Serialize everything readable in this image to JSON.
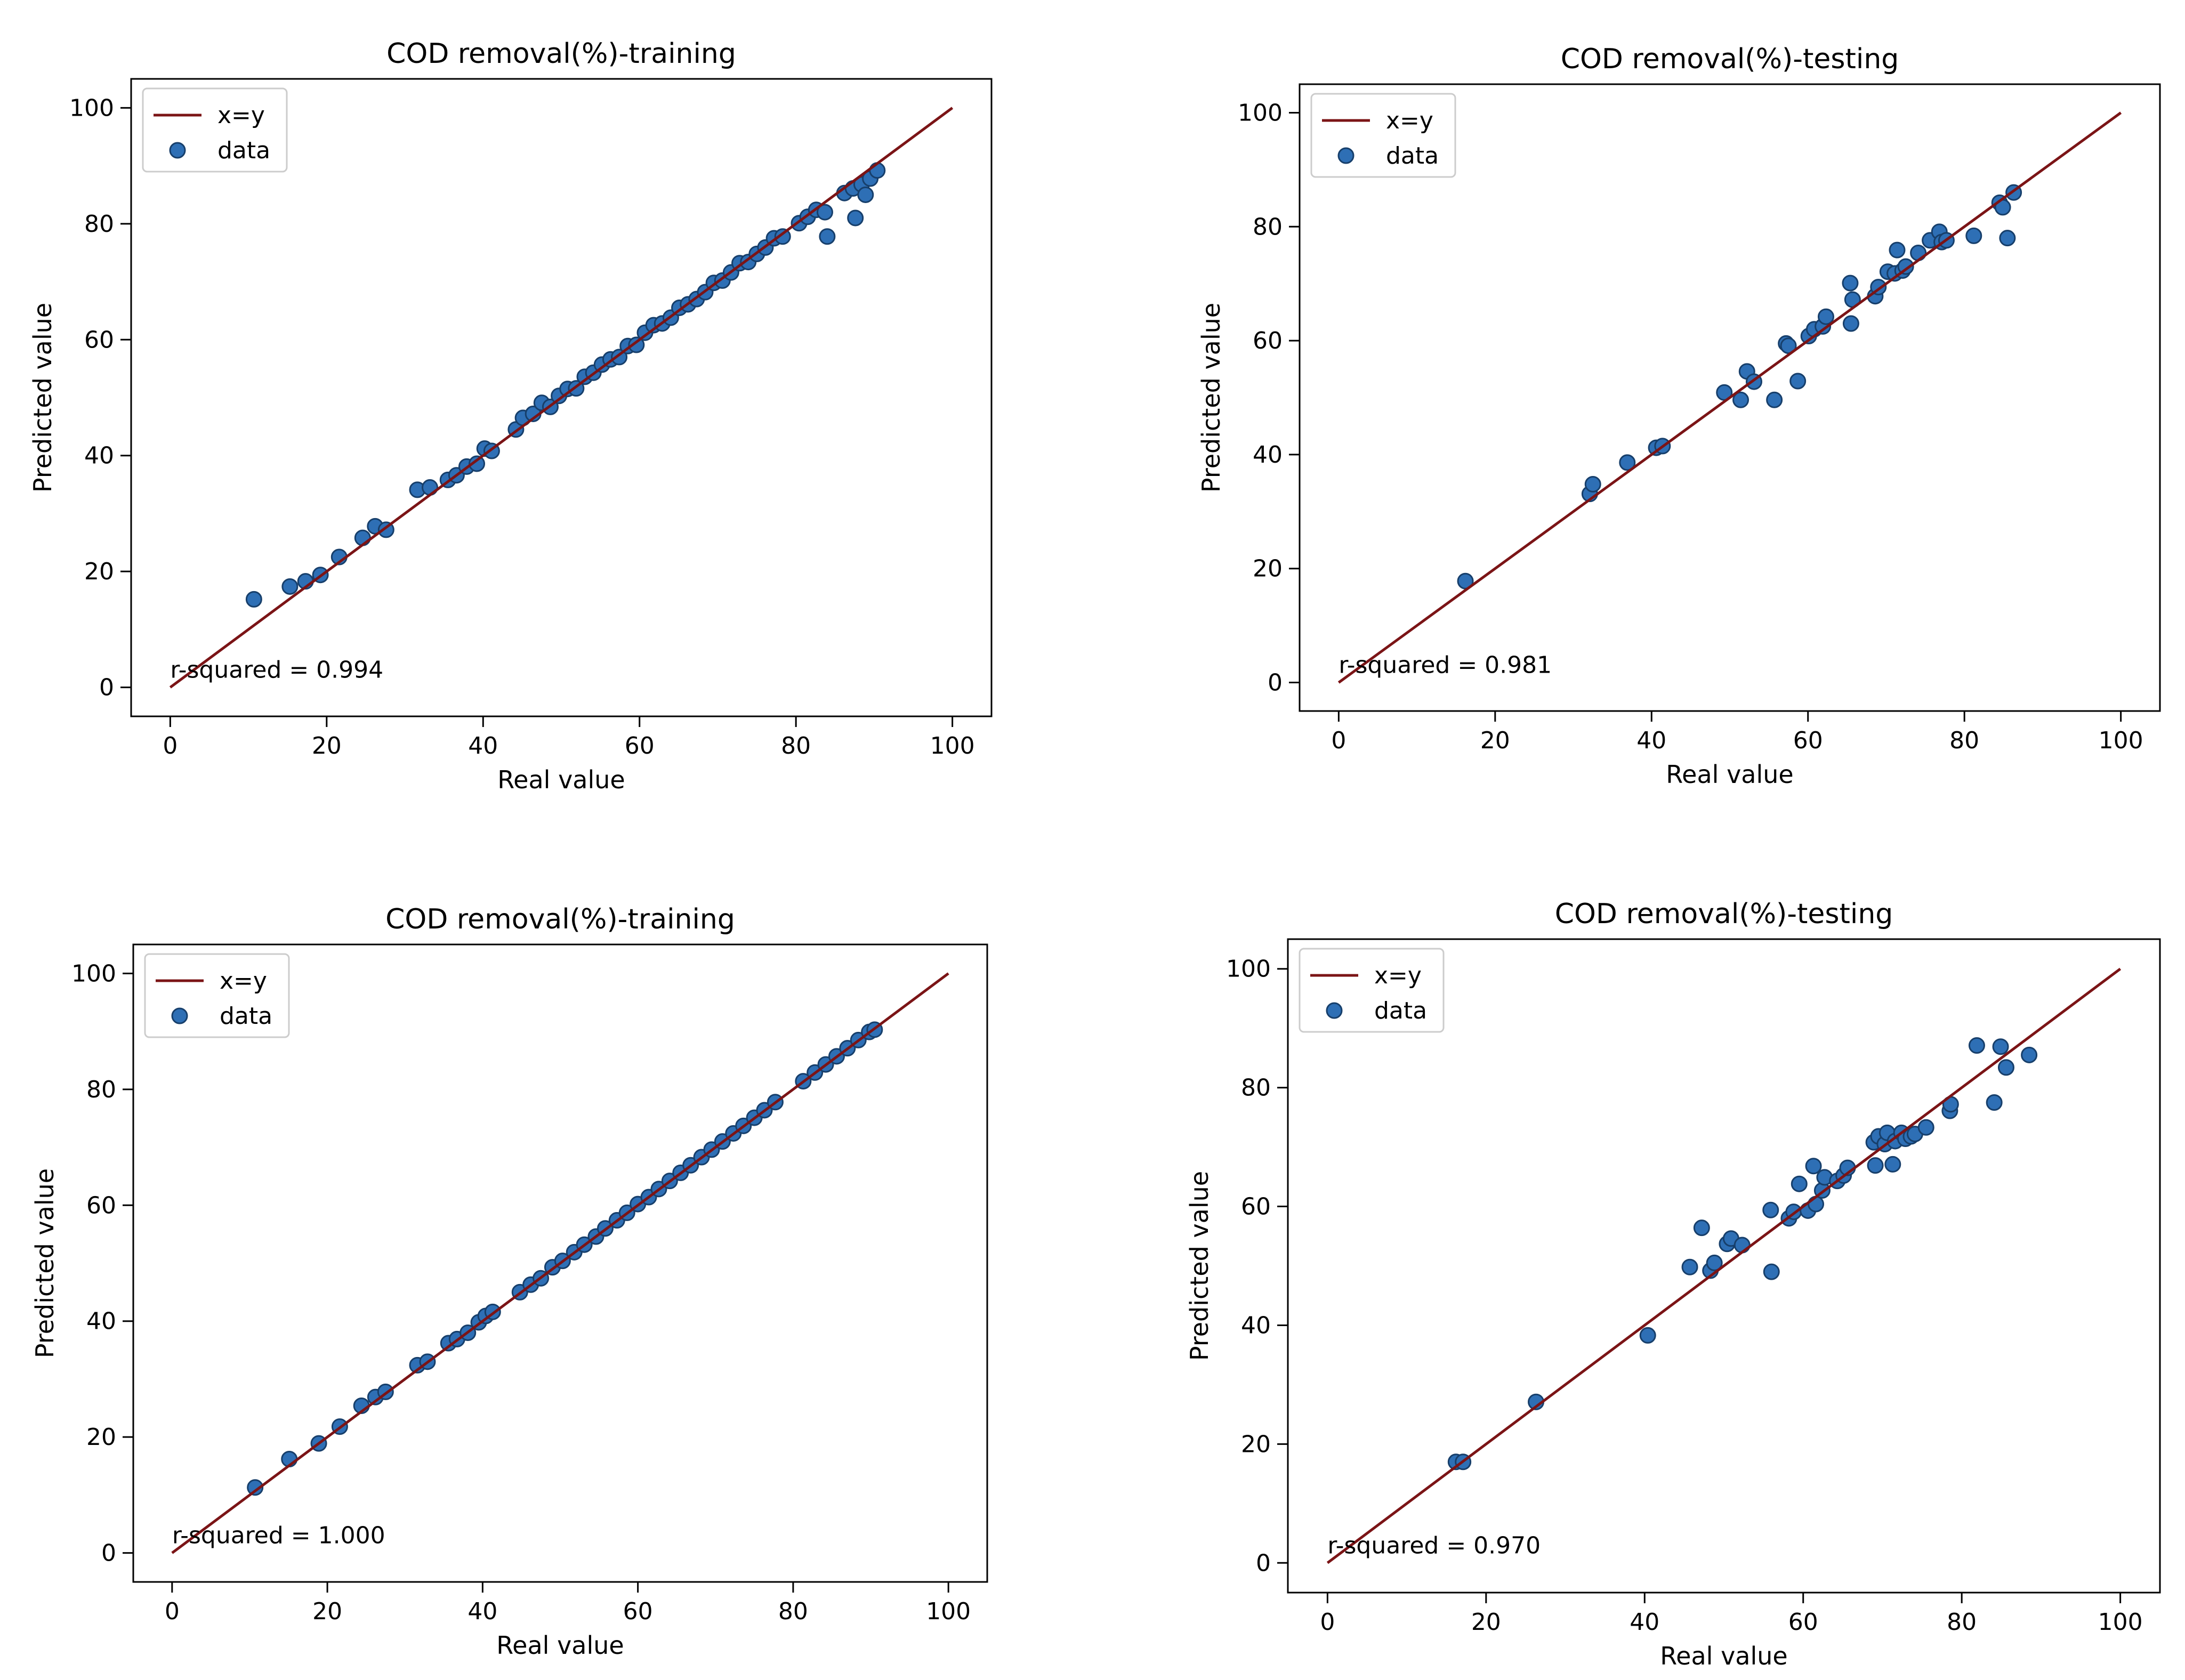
{
  "chart_data": [
    {
      "type": "scatter",
      "title": "COD removal(%)-training",
      "xlabel": "Real value",
      "ylabel": "Predicted value",
      "xlim": [
        -5,
        105
      ],
      "ylim": [
        -5,
        105
      ],
      "xticks": [
        0,
        20,
        40,
        60,
        80,
        100
      ],
      "yticks": [
        0,
        20,
        40,
        60,
        80,
        100
      ],
      "legend": {
        "position": "top-left",
        "entries": [
          "x=y",
          "data"
        ]
      },
      "annotation": "r-squared = 0.994",
      "grid": false,
      "series": [
        {
          "name": "x=y",
          "kind": "line",
          "x": [
            0,
            100
          ],
          "y": [
            0,
            100
          ]
        },
        {
          "name": "data",
          "kind": "scatter",
          "x": [
            10.7,
            15.3,
            17.3,
            19.2,
            21.6,
            24.6,
            26.2,
            27.6,
            31.6,
            33.2,
            35.5,
            36.6,
            37.9,
            39.2,
            40.2,
            41.1,
            44.2,
            45.1,
            46.4,
            47.5,
            48.6,
            49.7,
            50.8,
            51.9,
            53.0,
            54.1,
            55.2,
            56.3,
            57.4,
            58.5,
            59.6,
            60.7,
            61.8,
            62.9,
            64.0,
            65.1,
            66.2,
            67.3,
            68.4,
            69.5,
            70.6,
            71.7,
            72.8,
            73.9,
            75.0,
            76.1,
            77.2,
            78.3,
            80.4,
            81.5,
            82.6,
            83.7,
            84.0,
            86.2,
            87.3,
            88.4,
            89.5,
            90.4,
            87.6,
            88.9
          ],
          "y": [
            15.2,
            17.4,
            18.3,
            19.4,
            22.5,
            25.8,
            27.8,
            27.2,
            34.1,
            34.5,
            35.8,
            36.6,
            38.1,
            38.6,
            41.2,
            40.8,
            44.5,
            46.5,
            47.2,
            49.1,
            48.4,
            50.3,
            51.5,
            51.6,
            53.6,
            54.3,
            55.7,
            56.6,
            57.0,
            58.9,
            59.1,
            61.2,
            62.5,
            62.8,
            63.8,
            65.5,
            66.1,
            67.0,
            68.2,
            69.8,
            70.2,
            71.6,
            73.2,
            73.4,
            74.8,
            75.9,
            77.5,
            77.8,
            80.1,
            81.2,
            82.4,
            82.0,
            77.8,
            85.3,
            86.1,
            86.8,
            87.8,
            89.2,
            81.0,
            85.0
          ]
        }
      ]
    },
    {
      "type": "scatter",
      "title": "COD removal(%)-testing",
      "xlabel": "Real value",
      "ylabel": "Predicted value",
      "xlim": [
        -5,
        105
      ],
      "ylim": [
        -5,
        105
      ],
      "xticks": [
        0,
        20,
        40,
        60,
        80,
        100
      ],
      "yticks": [
        0,
        20,
        40,
        60,
        80,
        100
      ],
      "legend": {
        "position": "top-left",
        "entries": [
          "x=y",
          "data"
        ]
      },
      "annotation": "r-squared = 0.981",
      "grid": false,
      "series": [
        {
          "name": "x=y",
          "kind": "line",
          "x": [
            0,
            100
          ],
          "y": [
            0,
            100
          ]
        },
        {
          "name": "data",
          "kind": "scatter",
          "x": [
            16.2,
            32.1,
            32.5,
            36.9,
            40.6,
            41.4,
            49.3,
            51.4,
            52.2,
            53.1,
            55.7,
            57.2,
            57.5,
            58.7,
            60.1,
            60.8,
            61.9,
            62.3,
            65.4,
            65.5,
            65.7,
            68.6,
            69.0,
            70.2,
            71.1,
            71.4,
            72.1,
            72.5,
            74.1,
            75.6,
            76.8,
            77.1,
            77.7,
            81.2,
            84.5,
            84.9,
            85.5,
            86.3
          ],
          "y": [
            17.8,
            33.1,
            34.8,
            38.6,
            41.2,
            41.5,
            50.9,
            49.6,
            54.6,
            52.8,
            49.6,
            59.5,
            59.1,
            52.9,
            60.8,
            62.0,
            62.5,
            64.2,
            70.1,
            63.0,
            67.2,
            67.8,
            69.4,
            72.1,
            71.8,
            75.9,
            72.3,
            73.0,
            75.4,
            77.6,
            79.1,
            77.3,
            77.6,
            78.4,
            84.2,
            83.4,
            78.0,
            86.0
          ]
        }
      ]
    },
    {
      "type": "scatter",
      "title": "COD removal(%)-training",
      "xlabel": "Real value",
      "ylabel": "Predicted value",
      "xlim": [
        -5,
        105
      ],
      "ylim": [
        -5,
        105
      ],
      "xticks": [
        0,
        20,
        40,
        60,
        80,
        100
      ],
      "yticks": [
        0,
        20,
        40,
        60,
        80,
        100
      ],
      "legend": {
        "position": "top-left",
        "entries": [
          "x=y",
          "data"
        ]
      },
      "annotation": "r-squared = 1.000",
      "grid": false,
      "series": [
        {
          "name": "x=y",
          "kind": "line",
          "x": [
            0,
            100
          ],
          "y": [
            0,
            100
          ]
        },
        {
          "name": "data",
          "kind": "scatter",
          "x": [
            10.7,
            15.1,
            18.9,
            21.6,
            24.4,
            26.2,
            27.5,
            31.6,
            32.9,
            35.6,
            36.7,
            38.1,
            39.5,
            40.4,
            41.3,
            44.8,
            46.2,
            47.5,
            49.0,
            50.3,
            51.8,
            53.1,
            54.6,
            55.8,
            57.3,
            58.6,
            60.0,
            61.4,
            62.7,
            64.1,
            65.5,
            66.8,
            68.2,
            69.5,
            70.9,
            72.3,
            73.6,
            75.0,
            76.3,
            77.7,
            81.3,
            82.8,
            84.2,
            85.6,
            87.0,
            88.4,
            89.8,
            90.5
          ],
          "y": [
            11.3,
            16.2,
            18.9,
            21.8,
            25.4,
            26.9,
            27.8,
            32.4,
            33.0,
            36.2,
            36.9,
            38.0,
            39.8,
            40.9,
            41.6,
            45.0,
            46.3,
            47.4,
            49.3,
            50.4,
            51.9,
            53.2,
            54.6,
            56.0,
            57.4,
            58.7,
            60.2,
            61.4,
            62.8,
            64.2,
            65.6,
            66.9,
            68.3,
            69.6,
            71.0,
            72.4,
            73.7,
            75.1,
            76.4,
            77.8,
            81.4,
            82.9,
            84.3,
            85.7,
            87.1,
            88.5,
            89.9,
            90.3
          ]
        }
      ]
    },
    {
      "type": "scatter",
      "title": "COD removal(%)-testing",
      "xlabel": "Real value",
      "ylabel": "Predicted value",
      "xlim": [
        -5,
        105
      ],
      "ylim": [
        -5,
        105
      ],
      "xticks": [
        0,
        20,
        40,
        60,
        80,
        100
      ],
      "yticks": [
        0,
        20,
        40,
        60,
        80,
        100
      ],
      "legend": {
        "position": "top-left",
        "entries": [
          "x=y",
          "data"
        ]
      },
      "annotation": "r-squared = 0.970",
      "grid": false,
      "series": [
        {
          "name": "x=y",
          "kind": "line",
          "x": [
            0,
            100
          ],
          "y": [
            0,
            100
          ]
        },
        {
          "name": "data",
          "kind": "scatter",
          "x": [
            16.2,
            17.1,
            26.3,
            40.4,
            45.7,
            47.2,
            48.3,
            48.8,
            50.4,
            50.9,
            52.3,
            55.9,
            56.0,
            58.2,
            58.8,
            59.5,
            60.6,
            61.3,
            61.6,
            62.4,
            62.7,
            64.3,
            65.1,
            65.6,
            68.9,
            69.1,
            69.5,
            70.3,
            70.6,
            71.3,
            71.6,
            72.4,
            72.9,
            73.6,
            74.1,
            75.5,
            78.5,
            78.6,
            81.9,
            84.1,
            84.9,
            85.6,
            88.5
          ],
          "y": [
            17.0,
            17.0,
            27.1,
            38.3,
            49.8,
            56.4,
            49.2,
            50.5,
            53.7,
            54.6,
            53.5,
            59.4,
            49.0,
            58.0,
            59.1,
            63.8,
            59.3,
            66.8,
            60.4,
            62.7,
            64.9,
            64.3,
            65.2,
            66.5,
            70.8,
            66.9,
            71.8,
            70.5,
            72.4,
            67.1,
            71.0,
            72.4,
            71.4,
            71.8,
            72.2,
            73.3,
            76.1,
            77.2,
            87.1,
            77.5,
            86.9,
            83.4,
            85.5
          ]
        }
      ]
    }
  ]
}
